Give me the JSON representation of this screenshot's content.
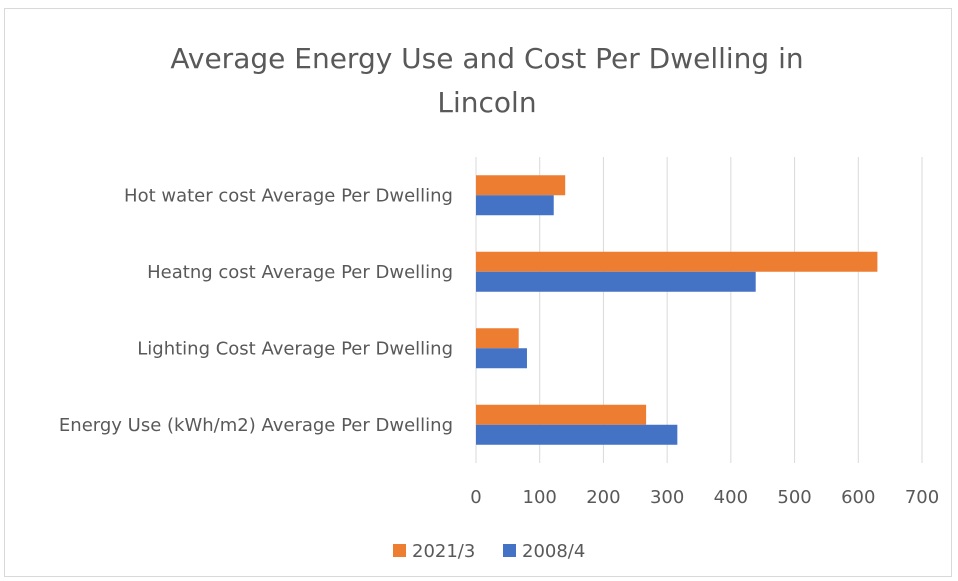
{
  "chart_data": {
    "type": "bar",
    "orientation": "horizontal",
    "title": "Average Energy Use and Cost Per Dwelling in Lincoln",
    "categories": [
      "Energy Use (kWh/m2) Average Per Dwelling",
      "Lighting Cost Average Per Dwelling",
      "Heatng cost Average Per Dwelling",
      "Hot water cost Average Per Dwelling"
    ],
    "series": [
      {
        "name": "2021/3",
        "color": "#ED7D31",
        "values": [
          267,
          67,
          630,
          140
        ]
      },
      {
        "name": "2008/4",
        "color": "#4472C4",
        "values": [
          316,
          80,
          439,
          122
        ]
      }
    ],
    "xlim": [
      0,
      700
    ],
    "xticks": [
      "0",
      "100",
      "200",
      "300",
      "400",
      "500",
      "600",
      "700"
    ],
    "grid": "vertical",
    "legend": "bottom"
  }
}
